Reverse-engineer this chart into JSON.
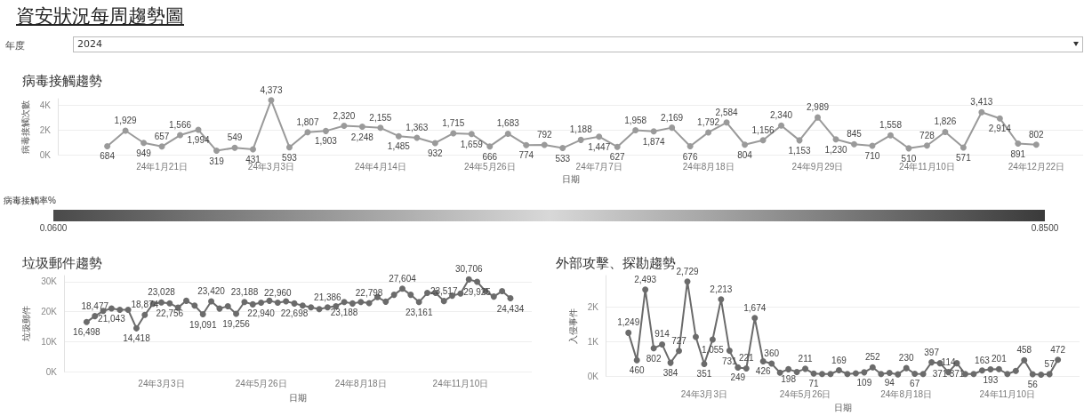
{
  "chart_data": [
    {
      "type": "other",
      "title": "資安狀況每周趨勢圖",
      "annotations": [
        "年度",
        "2024"
      ]
    },
    {
      "type": "line",
      "title": "病毒接觸趨勢",
      "xlabel": "日期",
      "ylabel": "病毒接觸次數",
      "clabel": "病毒接觸率%",
      "clim": [
        0.06,
        0.85
      ],
      "cticks": [
        {
          "value": 0.06,
          "label": "0.0600"
        },
        {
          "value": 0.85,
          "label": "0.8500"
        }
      ],
      "x": [
        "2023-12-31",
        "2024-01-07",
        "2024-01-14",
        "2024-01-21",
        "2024-01-28",
        "2024-02-04",
        "2024-02-11",
        "2024-02-18",
        "2024-02-25",
        "2024-03-03",
        "2024-03-10",
        "2024-03-17",
        "2024-03-24",
        "2024-03-31",
        "2024-04-07",
        "2024-04-14",
        "2024-04-21",
        "2024-04-28",
        "2024-05-05",
        "2024-05-12",
        "2024-05-19",
        "2024-05-26",
        "2024-06-02",
        "2024-06-09",
        "2024-06-16",
        "2024-06-23",
        "2024-06-30",
        "2024-07-07",
        "2024-07-14",
        "2024-07-21",
        "2024-07-28",
        "2024-08-04",
        "2024-08-11",
        "2024-08-18",
        "2024-08-25",
        "2024-09-01",
        "2024-09-08",
        "2024-09-15",
        "2024-09-22",
        "2024-09-29",
        "2024-10-06",
        "2024-10-13",
        "2024-10-20",
        "2024-10-27",
        "2024-11-03",
        "2024-11-10",
        "2024-11-17",
        "2024-11-24",
        "2024-12-01",
        "2024-12-08",
        "2024-12-15",
        "2024-12-22"
      ],
      "values": [
        684,
        1929,
        949,
        657,
        1566,
        1994,
        319,
        549,
        431,
        4373,
        593,
        1807,
        1903,
        2320,
        2248,
        2155,
        1485,
        1363,
        932,
        1715,
        1659,
        666,
        1683,
        774,
        792,
        533,
        1188,
        1447,
        627,
        1958,
        1874,
        2169,
        676,
        1792,
        2584,
        804,
        1156,
        2340,
        1153,
        2989,
        1230,
        845,
        710,
        1558,
        510,
        728,
        1826,
        571,
        3413,
        2914,
        891,
        802
      ],
      "value_labels": [
        "684",
        "1,929",
        "949",
        "657",
        "1,566",
        "1,994",
        "319",
        "549",
        "431",
        "4,373",
        "593",
        "1,807",
        "1,903",
        "2,320",
        "2,248",
        "2,155",
        "1,485",
        "1,363",
        "932",
        "1,715",
        "1,659",
        "666",
        "1,683",
        "774",
        "792",
        "533",
        "1,188",
        "1,447",
        "627",
        "1,958",
        "1,874",
        "2,169",
        "676",
        "1,792",
        "2,584",
        "804",
        "1,156",
        "2,340",
        "1,153",
        "2,989",
        "1,230",
        "845",
        "710",
        "1,558",
        "510",
        "728",
        "1,826",
        "571",
        "3,413",
        "2,914",
        "891",
        "802"
      ],
      "color": "#9a9a9a",
      "xlim": [
        "2023-12-12",
        "2025-01-09"
      ],
      "xticks": [
        {
          "value": "2024-01-21",
          "label": "24年1月21日"
        },
        {
          "value": "2024-03-03",
          "label": "24年3月3日"
        },
        {
          "value": "2024-04-14",
          "label": "24年4月14日"
        },
        {
          "value": "2024-05-26",
          "label": "24年5月26日"
        },
        {
          "value": "2024-07-07",
          "label": "24年7月7日"
        },
        {
          "value": "2024-08-18",
          "label": "24年8月18日"
        },
        {
          "value": "2024-09-29",
          "label": "24年9月29日"
        },
        {
          "value": "2024-11-10",
          "label": "24年11月10日"
        },
        {
          "value": "2024-12-22",
          "label": "24年12月22日"
        }
      ],
      "ylim": [
        0,
        4500
      ],
      "yticks": [
        {
          "value": 0,
          "label": "0K"
        },
        {
          "value": 2000,
          "label": "2K"
        },
        {
          "value": 4000,
          "label": "4K"
        }
      ],
      "grid": "y",
      "marker": "circle",
      "line_style": "solid"
    },
    {
      "type": "line",
      "title": "垃圾郵件趨勢",
      "xlabel": "日期",
      "ylabel": "垃圾郵件",
      "color": "#6b6b6b",
      "x": [
        "2023-12-31",
        "2024-01-07",
        "2024-01-14",
        "2024-01-21",
        "2024-01-28",
        "2024-02-04",
        "2024-02-11",
        "2024-02-18",
        "2024-02-25",
        "2024-03-03",
        "2024-03-10",
        "2024-03-17",
        "2024-03-24",
        "2024-03-31",
        "2024-04-07",
        "2024-04-14",
        "2024-04-21",
        "2024-04-28",
        "2024-05-05",
        "2024-05-12",
        "2024-05-19",
        "2024-05-26",
        "2024-06-02",
        "2024-06-09",
        "2024-06-16",
        "2024-06-23",
        "2024-06-30",
        "2024-07-07",
        "2024-07-14",
        "2024-07-21",
        "2024-07-28",
        "2024-08-04",
        "2024-08-11",
        "2024-08-18",
        "2024-08-25",
        "2024-09-01",
        "2024-09-08",
        "2024-09-15",
        "2024-09-22",
        "2024-09-29",
        "2024-10-06",
        "2024-10-13",
        "2024-10-20",
        "2024-10-27",
        "2024-11-03",
        "2024-11-10",
        "2024-11-17",
        "2024-11-24",
        "2024-12-01",
        "2024-12-08",
        "2024-12-15",
        "2024-12-22"
      ],
      "values": [
        16498,
        18477,
        20200,
        21043,
        20600,
        20600,
        14418,
        18874,
        22600,
        23028,
        22756,
        21300,
        23600,
        22000,
        19091,
        23420,
        21000,
        21800,
        19256,
        23188,
        22400,
        22940,
        23600,
        22960,
        23400,
        22698,
        22000,
        21400,
        20800,
        21386,
        21800,
        23188,
        22700,
        23200,
        22798,
        24800,
        23300,
        25600,
        27604,
        25600,
        23161,
        26200,
        26200,
        23517,
        25300,
        26000,
        30706,
        29925,
        26800,
        25000,
        26800,
        24434
      ],
      "value_labels": [
        "16,498",
        "18,477",
        null,
        "21,043",
        null,
        null,
        "14,418",
        "18,874",
        null,
        "23,028",
        "22,756",
        null,
        null,
        null,
        "19,091",
        "23,420",
        null,
        null,
        "19,256",
        "23,188",
        null,
        "22,940",
        null,
        "22,960",
        null,
        "22,698",
        null,
        null,
        null,
        "21,386",
        null,
        "23,188",
        null,
        null,
        "22,798",
        null,
        null,
        null,
        "27,604",
        null,
        "23,161",
        null,
        null,
        "23,517",
        null,
        null,
        "30,706",
        "29,925",
        null,
        null,
        null,
        "24,434"
      ],
      "xlim": [
        "2023-12-12",
        "2025-01-09"
      ],
      "xticks": [
        {
          "value": "2024-03-03",
          "label": "24年3月3日"
        },
        {
          "value": "2024-05-26",
          "label": "24年5月26日"
        },
        {
          "value": "2024-08-18",
          "label": "24年8月18日"
        },
        {
          "value": "2024-11-10",
          "label": "24年11月10日"
        }
      ],
      "ylim": [
        0,
        32000
      ],
      "yticks": [
        {
          "value": 0,
          "label": "0K"
        },
        {
          "value": 10000,
          "label": "10K"
        },
        {
          "value": 20000,
          "label": "20K"
        },
        {
          "value": 30000,
          "label": "30K"
        }
      ],
      "grid": "y",
      "marker": "circle",
      "line_style": "solid"
    },
    {
      "type": "line",
      "title": "外部攻擊、探勘趨勢",
      "xlabel": "日期",
      "ylabel": "入侵事件",
      "color": "#6b6b6b",
      "x": [
        "2023-12-31",
        "2024-01-07",
        "2024-01-14",
        "2024-01-21",
        "2024-01-28",
        "2024-02-04",
        "2024-02-11",
        "2024-02-18",
        "2024-02-25",
        "2024-03-03",
        "2024-03-10",
        "2024-03-17",
        "2024-03-24",
        "2024-03-31",
        "2024-04-07",
        "2024-04-14",
        "2024-04-21",
        "2024-04-28",
        "2024-05-05",
        "2024-05-12",
        "2024-05-19",
        "2024-05-26",
        "2024-06-02",
        "2024-06-09",
        "2024-06-16",
        "2024-06-23",
        "2024-06-30",
        "2024-07-07",
        "2024-07-14",
        "2024-07-21",
        "2024-07-28",
        "2024-08-04",
        "2024-08-11",
        "2024-08-18",
        "2024-08-25",
        "2024-09-01",
        "2024-09-08",
        "2024-09-15",
        "2024-09-22",
        "2024-09-29",
        "2024-10-06",
        "2024-10-13",
        "2024-10-20",
        "2024-10-27",
        "2024-11-03",
        "2024-11-10",
        "2024-11-17",
        "2024-11-24",
        "2024-12-01",
        "2024-12-08",
        "2024-12-15",
        "2024-12-22"
      ],
      "values": [
        1249,
        460,
        2493,
        802,
        914,
        384,
        727,
        2729,
        1130,
        351,
        1055,
        2213,
        731,
        249,
        221,
        1674,
        426,
        360,
        100,
        198,
        120,
        211,
        71,
        60,
        60,
        169,
        60,
        80,
        109,
        252,
        60,
        94,
        50,
        230,
        67,
        60,
        397,
        371,
        114,
        371,
        60,
        60,
        163,
        193,
        201,
        60,
        150,
        458,
        56,
        40,
        57,
        472
      ],
      "value_labels": [
        "1,249",
        "460",
        "2,493",
        "802",
        "914",
        "384",
        "727",
        "2,729",
        null,
        "351",
        "1,055",
        "2,213",
        "731",
        "249",
        "221",
        "1,674",
        "426",
        "360",
        null,
        "198",
        null,
        "211",
        "71",
        null,
        null,
        "169",
        null,
        null,
        "109",
        "252",
        null,
        "94",
        null,
        "230",
        "67",
        null,
        "397",
        "371",
        "114",
        "371",
        null,
        null,
        "163",
        "193",
        "201",
        null,
        null,
        "458",
        "56",
        null,
        "57",
        "472"
      ],
      "xlim": [
        "2023-12-12",
        "2025-01-09"
      ],
      "xticks": [
        {
          "value": "2024-03-03",
          "label": "24年3月3日"
        },
        {
          "value": "2024-05-26",
          "label": "24年5月26日"
        },
        {
          "value": "2024-08-18",
          "label": "24年8月18日"
        },
        {
          "value": "2024-11-10",
          "label": "24年11月10日"
        }
      ],
      "ylim": [
        0,
        2900
      ],
      "yticks": [
        {
          "value": 0,
          "label": "0K"
        },
        {
          "value": 1000,
          "label": "1K"
        },
        {
          "value": 2000,
          "label": "2K"
        }
      ],
      "grid": "y",
      "marker": "circle",
      "line_style": "solid"
    }
  ]
}
